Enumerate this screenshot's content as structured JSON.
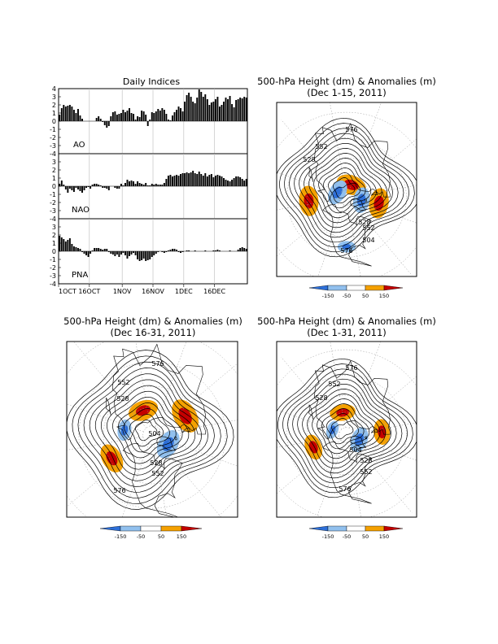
{
  "indices_panel": {
    "title": "Daily Indices",
    "ytick_labels": [
      "4",
      "3",
      "2",
      "1",
      "0",
      "-1",
      "-2",
      "-3",
      "-4"
    ],
    "xtick_labels": [
      "1OCT",
      "16OCT",
      "1NOV",
      "16NOV",
      "1DEC",
      "16DEC"
    ],
    "colors": {
      "bar": "#000000",
      "grid": "#bbbbbb"
    }
  },
  "chart_data": [
    {
      "type": "bar",
      "name": "AO",
      "x_start": "1OCT 2011",
      "ylim": [
        -4,
        4
      ],
      "values": [
        0.8,
        1.6,
        2.0,
        1.8,
        1.9,
        2.0,
        1.8,
        1.4,
        1.0,
        1.5,
        0.7,
        0.3,
        0,
        0,
        0,
        0,
        0,
        0,
        0.4,
        0.6,
        0.3,
        -0.1,
        -0.5,
        -0.8,
        -0.6,
        0.6,
        1.1,
        1.2,
        0.8,
        0.9,
        1.0,
        1.4,
        1.1,
        1.3,
        1.6,
        1.0,
        0.9,
        0.2,
        0.6,
        0.5,
        1.3,
        1.2,
        0.8,
        -0.6,
        0.2,
        1.1,
        1.0,
        1.2,
        1.5,
        1.3,
        1.6,
        1.4,
        0.9,
        0.2,
        0.1,
        0.7,
        1.1,
        1.4,
        1.8,
        1.6,
        1.2,
        2.4,
        3.2,
        3.5,
        3.0,
        2.4,
        2.2,
        2.9,
        3.9,
        3.6,
        3.0,
        3.3,
        2.7,
        2.0,
        2.3,
        2.4,
        2.7,
        3.0,
        1.8,
        2.0,
        2.4,
        2.9,
        2.7,
        3.1,
        2.1,
        1.7,
        2.6,
        2.7,
        2.9,
        2.8,
        3.0,
        2.9
      ]
    },
    {
      "type": "bar",
      "name": "NAO",
      "x_start": "1OCT 2011",
      "ylim": [
        -4,
        4
      ],
      "values": [
        0.3,
        0.7,
        0.2,
        -0.4,
        -0.8,
        -0.3,
        -0.5,
        -0.7,
        -0.2,
        -0.4,
        -0.6,
        -0.8,
        -0.5,
        -0.2,
        -0.1,
        -0.3,
        0.2,
        0.3,
        0.3,
        0.2,
        0.1,
        -0.2,
        -0.2,
        -0.3,
        -0.5,
        0,
        0,
        -0.2,
        -0.3,
        -0.3,
        0.3,
        0.1,
        0.4,
        0.8,
        0.6,
        0.7,
        0.6,
        0.3,
        0.6,
        0.4,
        0.3,
        0.2,
        0.4,
        0.1,
        0.1,
        0.3,
        0.2,
        0.3,
        0.2,
        0.2,
        0.2,
        0.4,
        0.9,
        1.3,
        1.4,
        1.2,
        1.3,
        1.4,
        1.3,
        1.5,
        1.6,
        1.6,
        1.7,
        1.6,
        1.7,
        1.9,
        1.6,
        1.5,
        1.8,
        1.5,
        1.3,
        1.6,
        1.2,
        1.4,
        1.5,
        1.1,
        1.3,
        1.4,
        1.3,
        1.2,
        1.0,
        0.8,
        0.7,
        0.6,
        0.8,
        1.0,
        1.2,
        1.2,
        1.1,
        0.9,
        0.7,
        0.9
      ]
    },
    {
      "type": "bar",
      "name": "PNA",
      "x_start": "1OCT 2011",
      "ylim": [
        -4,
        4
      ],
      "values": [
        1.9,
        1.7,
        1.5,
        1.2,
        1.4,
        1.6,
        0.9,
        0.6,
        0.5,
        0.4,
        0.3,
        -0.1,
        -0.3,
        -0.5,
        -0.7,
        -0.3,
        0.1,
        0.4,
        0.4,
        0.4,
        0.3,
        0.2,
        0.3,
        0.3,
        -0.1,
        -0.3,
        -0.4,
        -0.6,
        -0.4,
        -0.7,
        -0.4,
        -0.2,
        -0.5,
        -0.9,
        -0.6,
        -0.4,
        -0.2,
        -0.5,
        -1.0,
        -1.2,
        -1.1,
        -0.9,
        -1.2,
        -1.1,
        -1.0,
        -0.7,
        -0.5,
        -0.3,
        -0.1,
        0,
        -0.1,
        -0.2,
        -0.1,
        0.1,
        0.2,
        0.3,
        0.3,
        0.2,
        -0.1,
        -0.2,
        -0.1,
        0,
        0.1,
        0.1,
        0,
        0,
        0.1,
        0,
        0,
        0,
        0,
        0.1,
        0,
        0,
        0,
        0.1,
        0.1,
        0.2,
        0.1,
        0,
        0,
        0,
        0,
        0.1,
        0,
        0,
        0,
        0.2,
        0.4,
        0.5,
        0.4,
        0.3
      ]
    },
    {
      "type": "map",
      "name": "map-dec1-15",
      "title_line1": "500-hPa Height (dm) & Anomalies (m)",
      "title_line2": "(Dec 1-15, 2011)",
      "contour_labels": [
        "576",
        "552",
        "528",
        "504",
        "528",
        "552",
        "576"
      ],
      "anomalies": [
        {
          "sign": "positive",
          "strength": "strong",
          "lat": 72,
          "lon": 60
        },
        {
          "sign": "positive",
          "strength": "strong",
          "lat": 48,
          "lon": -20
        },
        {
          "sign": "positive",
          "strength": "strong",
          "lat": 42,
          "lon": 175
        },
        {
          "sign": "negative",
          "strength": "moderate",
          "lat": 70,
          "lon": -20
        },
        {
          "sign": "negative",
          "strength": "moderate",
          "lat": 76,
          "lon": 140
        },
        {
          "sign": "negative",
          "strength": "weak",
          "lat": 30,
          "lon": -100
        }
      ]
    },
    {
      "type": "map",
      "name": "map-dec16-31",
      "title_line1": "500-hPa Height (dm) & Anomalies (m)",
      "title_line2": "(Dec 16-31, 2011)",
      "contour_labels": [
        "576",
        "552",
        "528",
        "504",
        "528",
        "552",
        "576"
      ],
      "anomalies": [
        {
          "sign": "positive",
          "strength": "strong",
          "lat": 50,
          "lon": 20
        },
        {
          "sign": "positive",
          "strength": "moderate",
          "lat": 42,
          "lon": -160
        },
        {
          "sign": "positive",
          "strength": "moderate",
          "lat": 62,
          "lon": 100
        },
        {
          "sign": "negative",
          "strength": "moderate",
          "lat": 70,
          "lon": -40
        },
        {
          "sign": "negative",
          "strength": "weak",
          "lat": 60,
          "lon": 160
        }
      ]
    },
    {
      "type": "map",
      "name": "map-dec1-31",
      "title_line1": "500-hPa Height (dm) & Anomalies (m)",
      "title_line2": "(Dec 1-31, 2011)",
      "contour_labels": [
        "576",
        "552",
        "528",
        "504",
        "528",
        "552",
        "576"
      ],
      "anomalies": [
        {
          "sign": "positive",
          "strength": "moderate",
          "lat": 45,
          "lon": -5
        },
        {
          "sign": "positive",
          "strength": "moderate",
          "lat": 45,
          "lon": -170
        },
        {
          "sign": "positive",
          "strength": "moderate",
          "lat": 60,
          "lon": 90
        },
        {
          "sign": "negative",
          "strength": "moderate",
          "lat": 72,
          "lon": -30
        },
        {
          "sign": "negative",
          "strength": "weak",
          "lat": 70,
          "lon": 150
        }
      ]
    }
  ],
  "colorbar": {
    "labels": [
      "-150",
      "-50",
      "50",
      "150"
    ],
    "colors": [
      "#2d6fd8",
      "#91c0ee",
      "#ffffff",
      "#f5a100",
      "#c40000"
    ]
  }
}
